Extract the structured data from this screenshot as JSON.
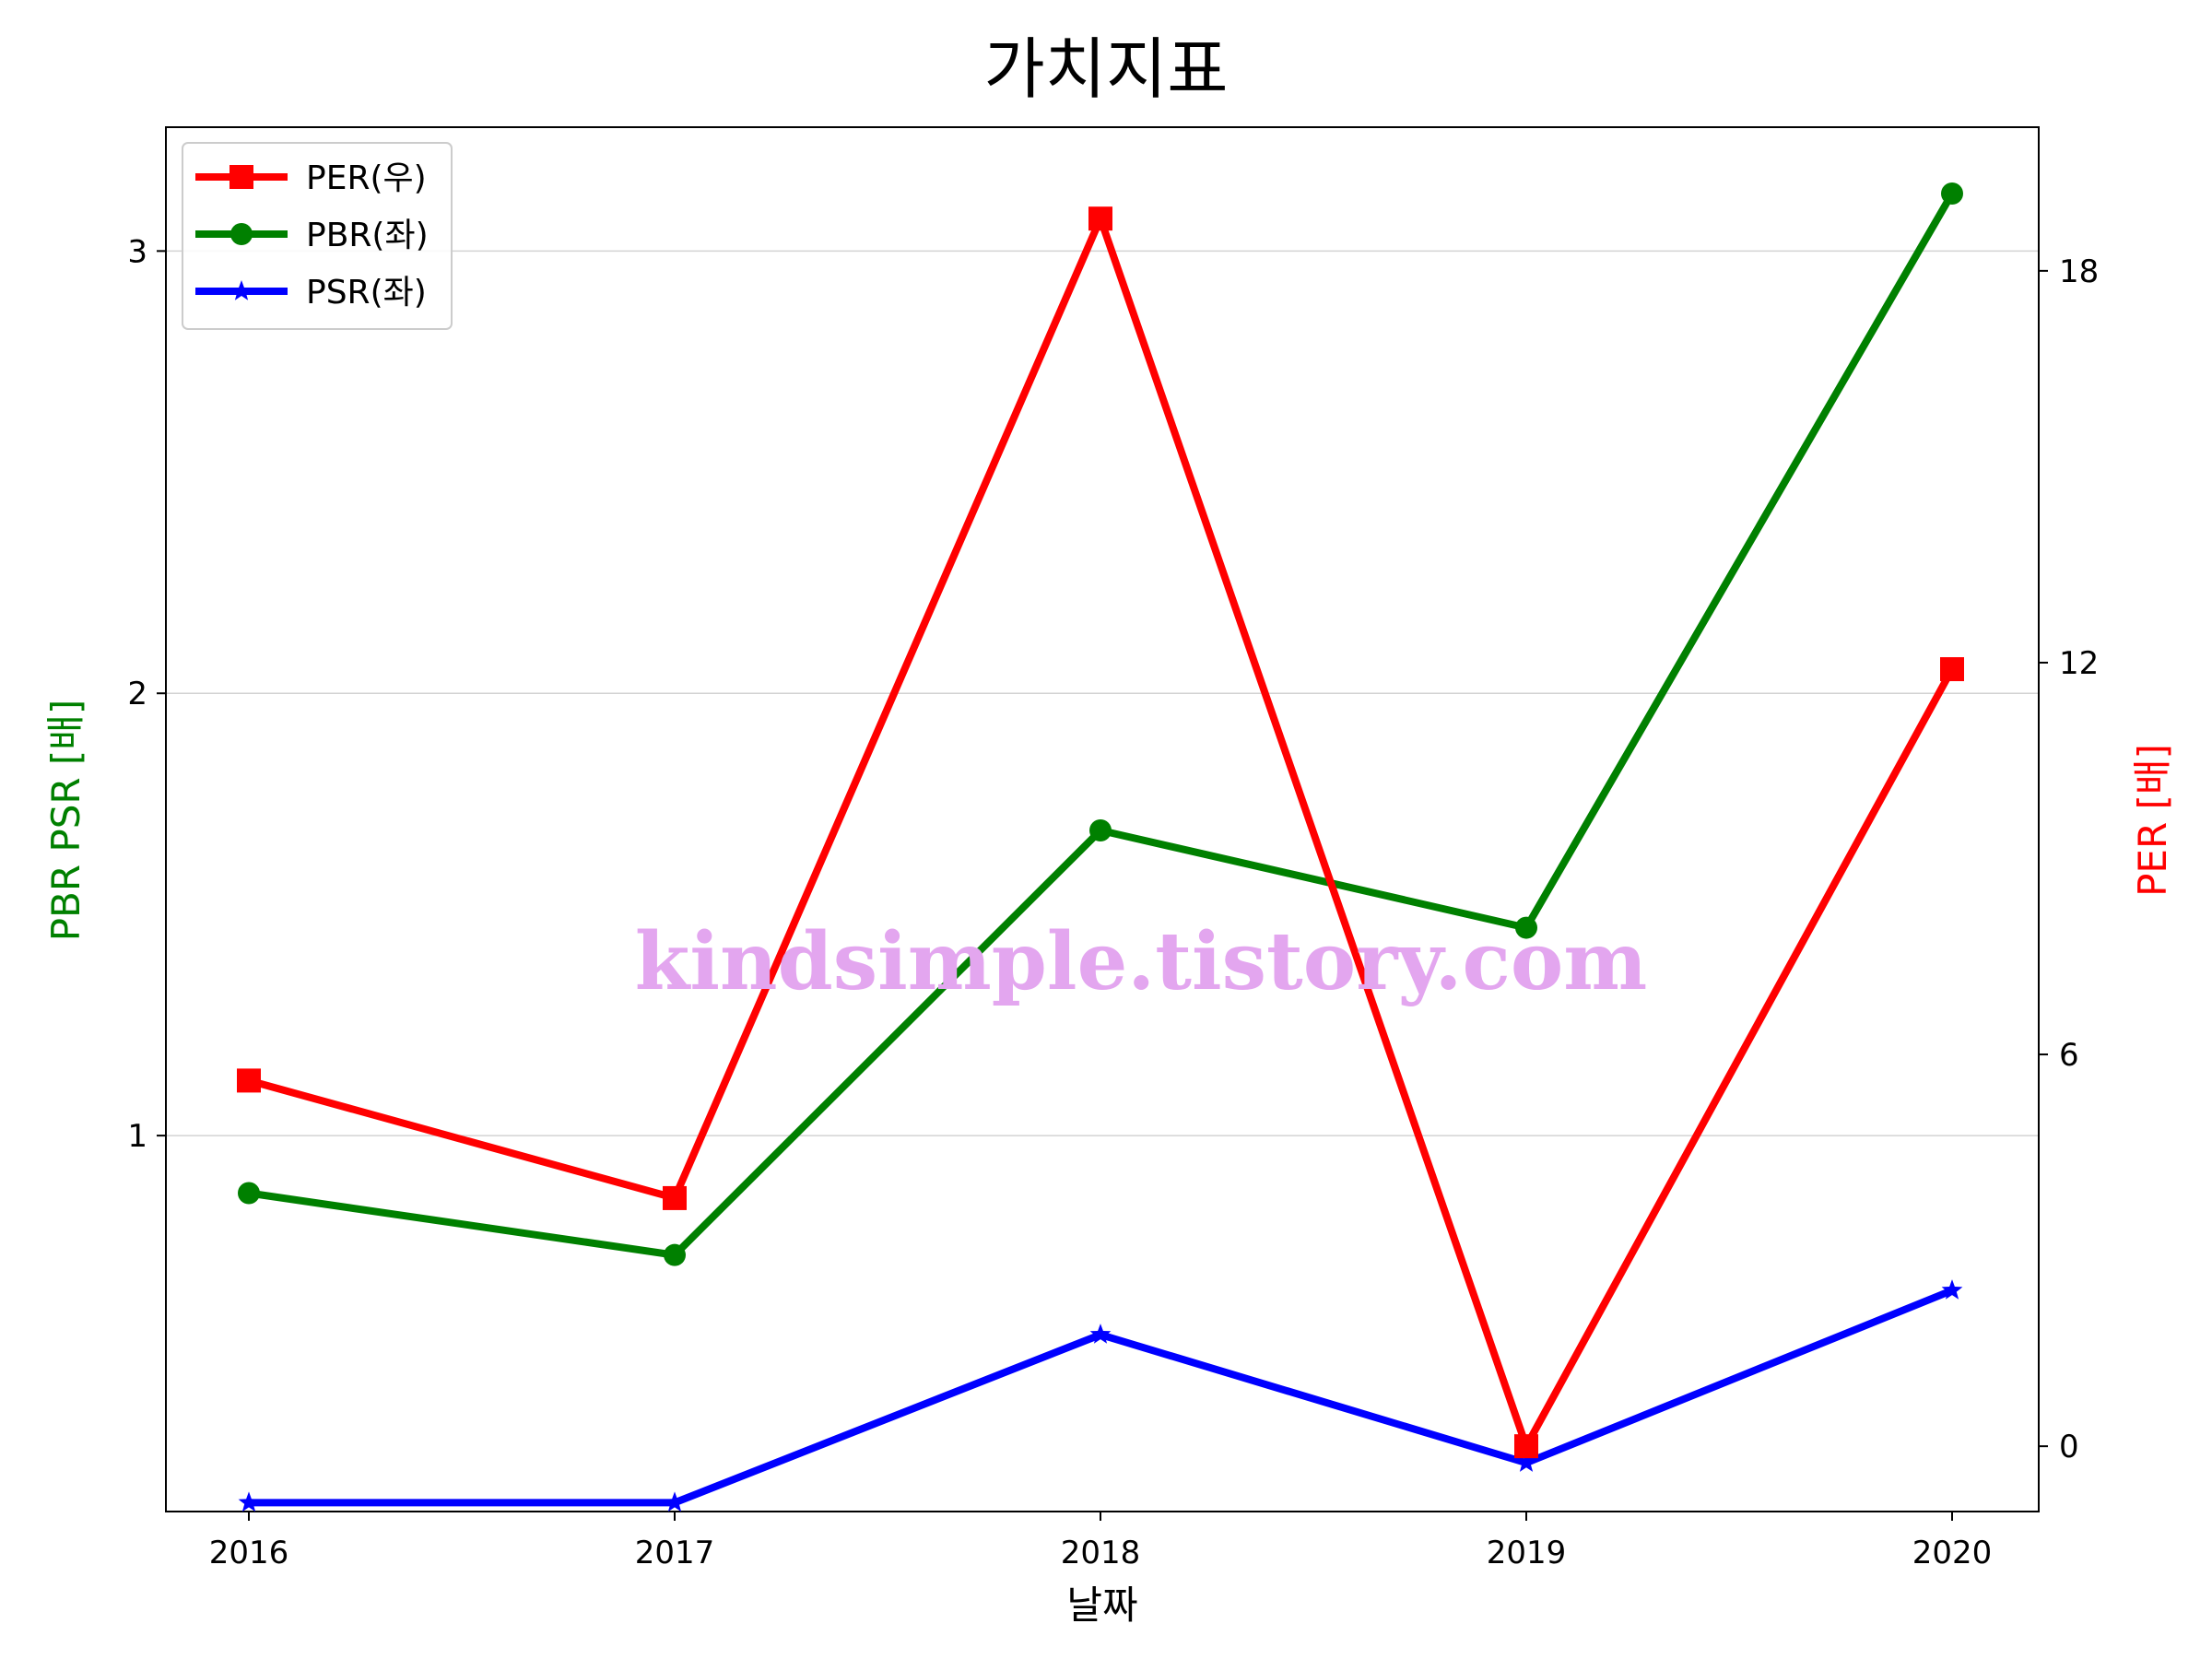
{
  "chart_data": {
    "type": "line",
    "title": "가치지표",
    "xlabel": "날짜",
    "ylabel_left": "PBR PSR [배]",
    "ylabel_right": "PER [배]",
    "categories": [
      "2016",
      "2017",
      "2018",
      "2019",
      "2020"
    ],
    "left_axis": {
      "ylim": [
        0.15,
        3.28
      ],
      "ticks": [
        "1",
        "2",
        "3"
      ],
      "tick_values": [
        1,
        2,
        3
      ]
    },
    "right_axis": {
      "ylim": [
        -1.0,
        20.2
      ],
      "ticks": [
        "0",
        "6",
        "12",
        "18"
      ],
      "tick_values": [
        0,
        6,
        12,
        18
      ]
    },
    "grid": "horizontal-left",
    "legend_position": "upper-left",
    "series": [
      {
        "name": "PER(우)",
        "axis": "right",
        "marker": "square",
        "color": "#ff0000",
        "values": [
          5.6,
          3.8,
          18.8,
          0.0,
          11.9
        ]
      },
      {
        "name": "PBR(좌)",
        "axis": "left",
        "marker": "circle",
        "color": "#008000",
        "values": [
          0.87,
          0.73,
          1.69,
          1.47,
          3.13
        ]
      },
      {
        "name": "PSR(좌)",
        "axis": "left",
        "marker": "star",
        "color": "#0000ff",
        "values": [
          0.17,
          0.17,
          0.55,
          0.26,
          0.65
        ]
      }
    ]
  },
  "watermark": "kindsimple.tistory.com",
  "colors": {
    "axis_left_label": "#008000",
    "axis_right_label": "#ff0000",
    "grid": "#d3d3d3"
  }
}
